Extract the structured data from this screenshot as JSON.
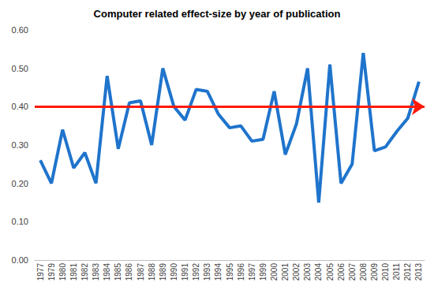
{
  "chart_data": {
    "type": "line",
    "title": "Computer related effect-size by year of publication",
    "categories": [
      "1977",
      "1979",
      "1980",
      "1981",
      "1982",
      "1983",
      "1984",
      "1985",
      "1986",
      "1987",
      "1988",
      "1989",
      "1990",
      "1991",
      "1992",
      "1993",
      "1994",
      "1995",
      "1996",
      "1997",
      "1999",
      "2000",
      "2001",
      "2002",
      "2003",
      "2004",
      "2005",
      "2006",
      "2007",
      "2008",
      "2009",
      "2010",
      "2011",
      "2012",
      "2013"
    ],
    "values": [
      0.26,
      0.2,
      0.34,
      0.24,
      0.28,
      0.2,
      0.48,
      0.29,
      0.41,
      0.415,
      0.3,
      0.5,
      0.4,
      0.365,
      0.445,
      0.44,
      0.38,
      0.345,
      0.35,
      0.31,
      0.315,
      0.44,
      0.275,
      0.355,
      0.5,
      0.15,
      0.51,
      0.2,
      0.25,
      0.54,
      0.285,
      0.295,
      0.335,
      0.37,
      0.465
    ],
    "color": "#1f74cc",
    "ylim": [
      0,
      0.6
    ],
    "yticks": [
      {
        "value": 0,
        "label": "0.00"
      },
      {
        "value": 0.1,
        "label": "0.10"
      },
      {
        "value": 0.2,
        "label": "0.20"
      },
      {
        "value": 0.3,
        "label": "0.30"
      },
      {
        "value": 0.4,
        "label": "0.40"
      },
      {
        "value": 0.5,
        "label": "0.50"
      },
      {
        "value": 0.6,
        "label": "0.60"
      }
    ],
    "grid": false,
    "reference_line": {
      "value": 0.4,
      "color": "#ff1a0a"
    }
  }
}
